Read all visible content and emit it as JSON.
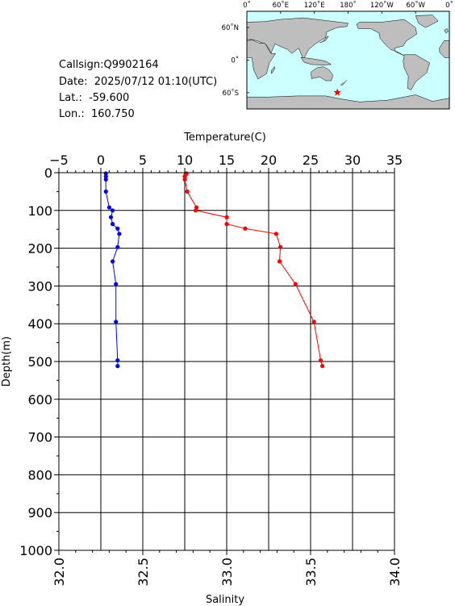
{
  "info": {
    "callsign": "Callsign:Q9902164",
    "date": "Date:  2025/07/12 01:10(UTC)",
    "lat": "Lat.:  -59.600",
    "lon": "Lon.:  160.750"
  },
  "map": {
    "lon_labels": [
      "0˚",
      "60˚E",
      "120˚E",
      "180˚",
      "120˚W",
      "60˚W",
      "0˚"
    ],
    "lat_labels": [
      "60˚N",
      "0˚",
      "60˚S"
    ],
    "marker": {
      "lon": 160.75,
      "lat": -59.6
    },
    "ocean_color": "#ccffff",
    "land_color": "#bebebe",
    "marker_color": "#ff0000"
  },
  "chart_data": {
    "type": "line",
    "y_label": "Depth(m)",
    "y_range": [
      1000,
      0
    ],
    "y_ticks": [
      "0",
      "100",
      "200",
      "300",
      "400",
      "500",
      "600",
      "700",
      "800",
      "900",
      "1000"
    ],
    "grid": true,
    "temperature_axis": {
      "label": "Temperature(C)",
      "range": [
        -5,
        35
      ],
      "ticks": [
        "−5",
        "0",
        "5",
        "10",
        "15",
        "20",
        "25",
        "30",
        "35"
      ],
      "color": "#ff0000"
    },
    "salinity_axis": {
      "label": "Salinity",
      "range": [
        32.0,
        34.0
      ],
      "ticks": [
        "32.0",
        "32.5",
        "33.0",
        "33.5",
        "34.0"
      ],
      "color": "#0000ff"
    },
    "series": [
      {
        "quantity": "temperature",
        "color": "#ff0000",
        "points": [
          {
            "value": 10.2,
            "depth": 2
          },
          {
            "value": 10.1,
            "depth": 5
          },
          {
            "value": 10.0,
            "depth": 10
          },
          {
            "value": 10.0,
            "depth": 18
          },
          {
            "value": 10.3,
            "depth": 50
          },
          {
            "value": 11.4,
            "depth": 92
          },
          {
            "value": 11.3,
            "depth": 100
          },
          {
            "value": 15.0,
            "depth": 118
          },
          {
            "value": 15.0,
            "depth": 136
          },
          {
            "value": 17.2,
            "depth": 148
          },
          {
            "value": 20.9,
            "depth": 162
          },
          {
            "value": 21.4,
            "depth": 197
          },
          {
            "value": 21.3,
            "depth": 235
          },
          {
            "value": 23.2,
            "depth": 295
          },
          {
            "value": 25.4,
            "depth": 395
          },
          {
            "value": 26.2,
            "depth": 497
          },
          {
            "value": 26.4,
            "depth": 512
          }
        ]
      },
      {
        "quantity": "salinity",
        "color": "#0000ff",
        "points": [
          {
            "value": 32.28,
            "depth": 2
          },
          {
            "value": 32.28,
            "depth": 10
          },
          {
            "value": 32.28,
            "depth": 18
          },
          {
            "value": 32.28,
            "depth": 50
          },
          {
            "value": 32.3,
            "depth": 92
          },
          {
            "value": 32.32,
            "depth": 100
          },
          {
            "value": 32.31,
            "depth": 118
          },
          {
            "value": 32.32,
            "depth": 136
          },
          {
            "value": 32.35,
            "depth": 148
          },
          {
            "value": 32.36,
            "depth": 162
          },
          {
            "value": 32.35,
            "depth": 197
          },
          {
            "value": 32.32,
            "depth": 235
          },
          {
            "value": 32.34,
            "depth": 295
          },
          {
            "value": 32.34,
            "depth": 395
          },
          {
            "value": 32.35,
            "depth": 497
          },
          {
            "value": 32.35,
            "depth": 512
          }
        ]
      }
    ]
  }
}
